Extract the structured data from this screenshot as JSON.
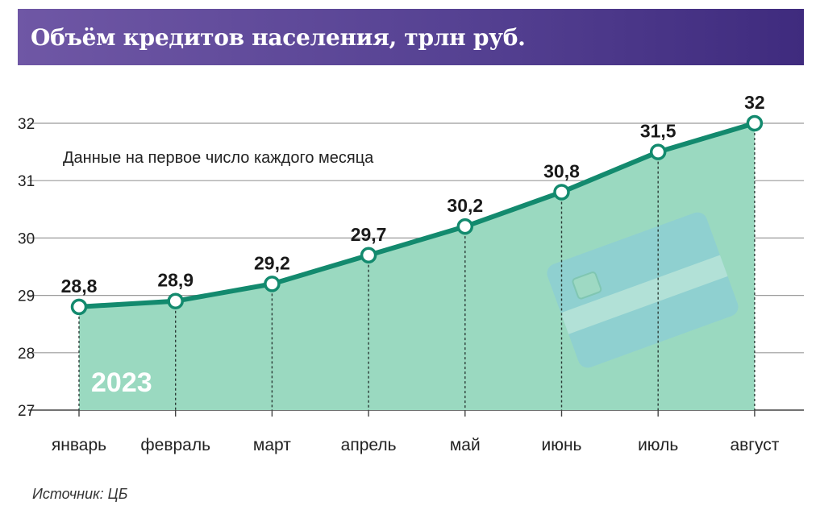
{
  "header": {
    "title": "Объём кредитов населения, трлн руб."
  },
  "note": "Данные на первое число каждого месяца",
  "year_label": "2023",
  "source": "Источник: ЦБ",
  "colors": {
    "line": "#138a6e",
    "area": "#9ad9c0",
    "header_start": "#6f57a5",
    "header_end": "#3f2b7e",
    "card": "#8ecfd3"
  },
  "decoration": {
    "card_icon": "credit-card-icon"
  },
  "chart_data": {
    "type": "area",
    "title": "Объём кредитов населения, трлн руб.",
    "xlabel": "",
    "ylabel": "",
    "categories": [
      "январь",
      "февраль",
      "март",
      "апрель",
      "май",
      "июнь",
      "июль",
      "август"
    ],
    "series": [
      {
        "values": [
          28.8,
          28.9,
          29.2,
          29.7,
          30.2,
          30.8,
          31.5,
          32
        ]
      }
    ],
    "data_labels": [
      "28,8",
      "28,9",
      "29,2",
      "29,7",
      "30,2",
      "30,8",
      "31,5",
      "32"
    ],
    "yticks": [
      27,
      28,
      29,
      30,
      31,
      32
    ],
    "ylim": [
      27,
      32
    ],
    "grid": true,
    "legend": "none"
  }
}
